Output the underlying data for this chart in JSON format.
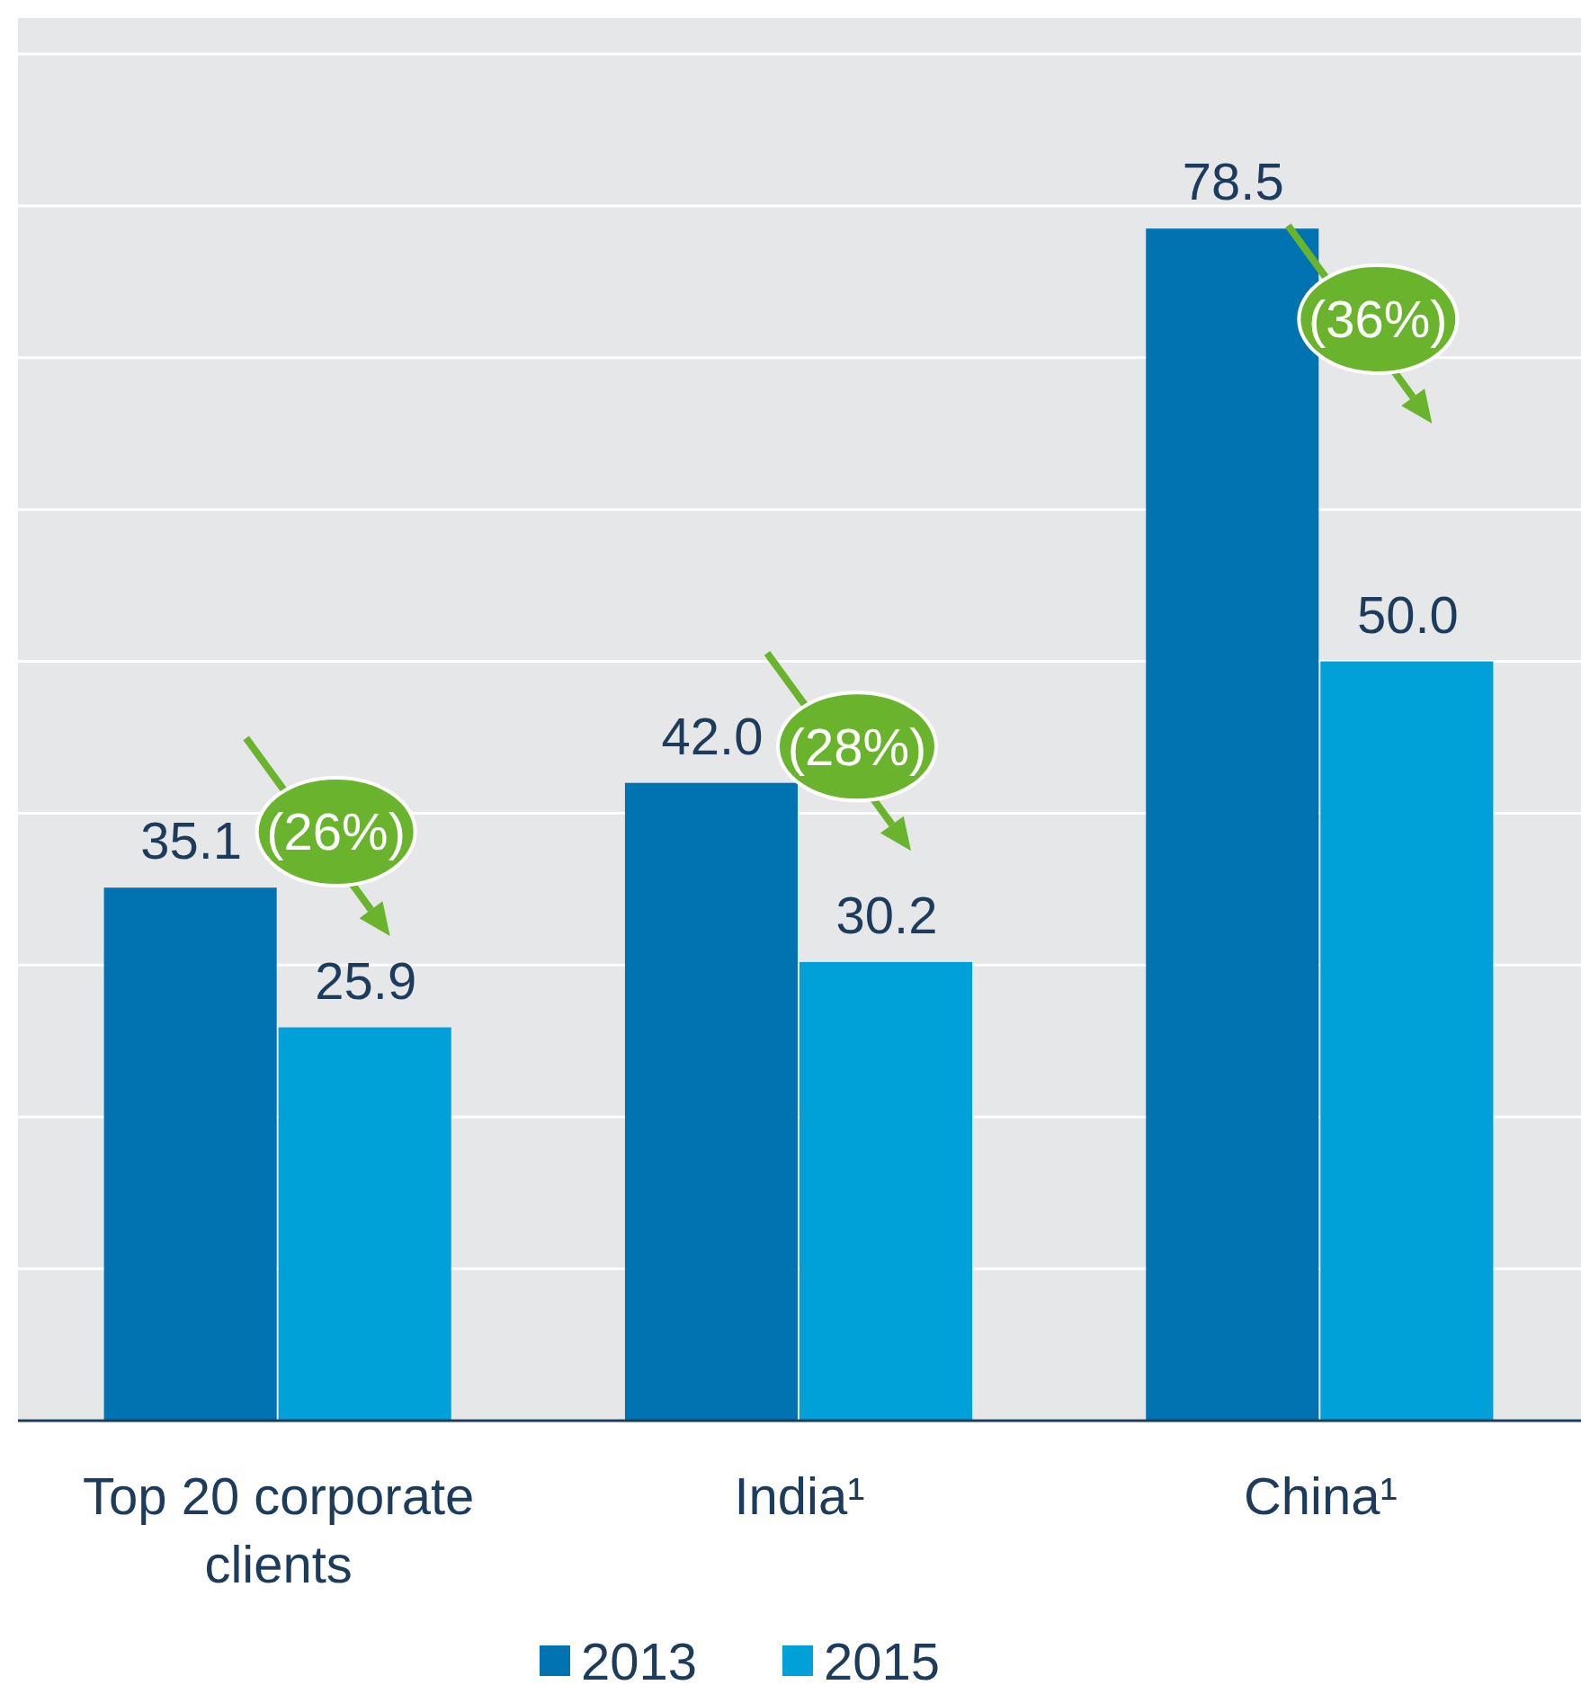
{
  "chart_data": {
    "type": "bar",
    "categories": [
      "Top 20 corporate clients",
      "India¹",
      "China¹"
    ],
    "series": [
      {
        "name": "2013",
        "color": "#0073b0",
        "values": [
          35.1,
          42.0,
          78.5
        ],
        "value_labels": [
          "35.1",
          "42.0",
          "78.5"
        ]
      },
      {
        "name": "2015",
        "color": "#00a0d8",
        "values": [
          25.9,
          30.2,
          50.0
        ],
        "value_labels": [
          "25.9",
          "30.2",
          "50.0"
        ]
      }
    ],
    "ylim": [
      0,
      90
    ],
    "yticks": [
      {
        "value": 0,
        "label": null
      },
      {
        "value": 10,
        "label": null
      },
      {
        "value": 20,
        "label": null
      },
      {
        "value": 30,
        "label": null
      },
      {
        "value": 40,
        "label": null
      },
      {
        "value": 50,
        "label": null
      },
      {
        "value": 60,
        "label": null
      },
      {
        "value": 70,
        "label": null
      },
      {
        "value": 80,
        "label": null
      },
      {
        "value": 90,
        "label": null
      }
    ],
    "tick_labels": "x",
    "grid": "y",
    "legend": "bottom",
    "annotations": [
      "(26%)",
      "(28%)",
      "(36%)"
    ]
  }
}
